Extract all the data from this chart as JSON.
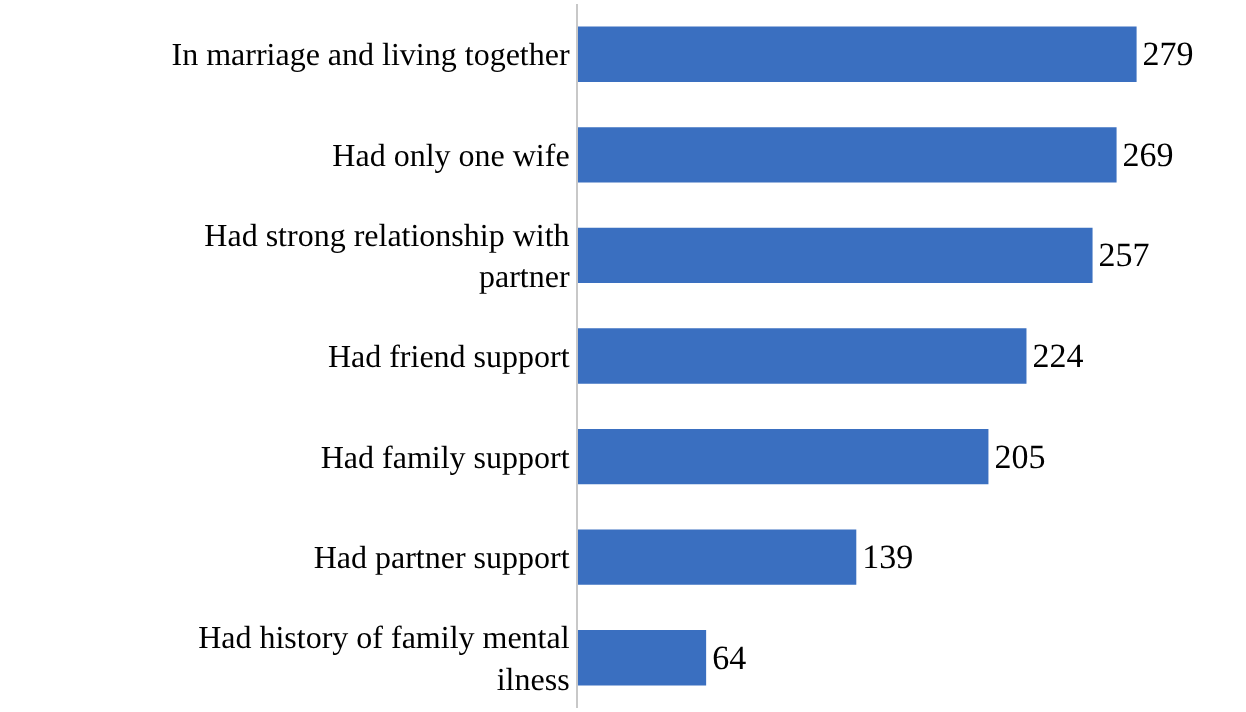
{
  "chart_data": {
    "type": "bar",
    "orientation": "horizontal",
    "categories": [
      "In marriage and living together",
      "Had only one wife",
      "Had strong relationship with partner",
      "Had friend support",
      "Had family support",
      "Had partner support",
      "Had history of family mental ilness"
    ],
    "values": [
      279,
      269,
      257,
      224,
      205,
      139,
      64
    ],
    "color": "#3a6fc0",
    "data_labels": true,
    "tick_labels": "y",
    "grid": false
  }
}
